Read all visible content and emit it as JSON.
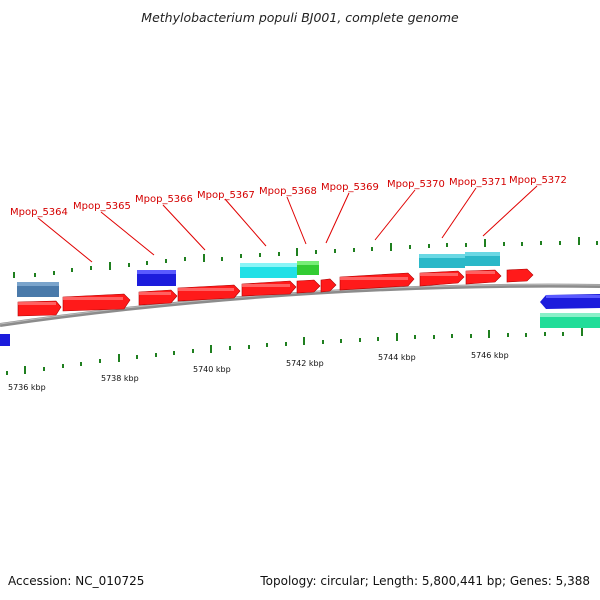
{
  "title": "Methylobacterium populi BJ001, complete genome",
  "footer": {
    "accession": "Accession: NC_010725",
    "summary": "Topology: circular; Length: 5,800,441 bp; Genes: 5,388"
  },
  "colors": {
    "forward_cds": "#ff1a1a",
    "reverse_cds": "#1c1cdc",
    "backbone": "#8c8c8c",
    "tick": "#1f7f1f",
    "label": "#d40000",
    "cyan": "#22e0e6",
    "teal": "#2ab8c8",
    "green": "#33cc33",
    "steel": "#4a7aaa",
    "seagreen": "#22dd99"
  },
  "gene_labels": [
    "Mpop_5364",
    "Mpop_5365",
    "Mpop_5366",
    "Mpop_5367",
    "Mpop_5368",
    "Mpop_5369",
    "Mpop_5370",
    "Mpop_5371",
    "Mpop_5372"
  ],
  "kbp_labels": [
    "5736 kbp",
    "5738 kbp",
    "5740 kbp",
    "5742 kbp",
    "5744 kbp",
    "5746 kbp"
  ]
}
